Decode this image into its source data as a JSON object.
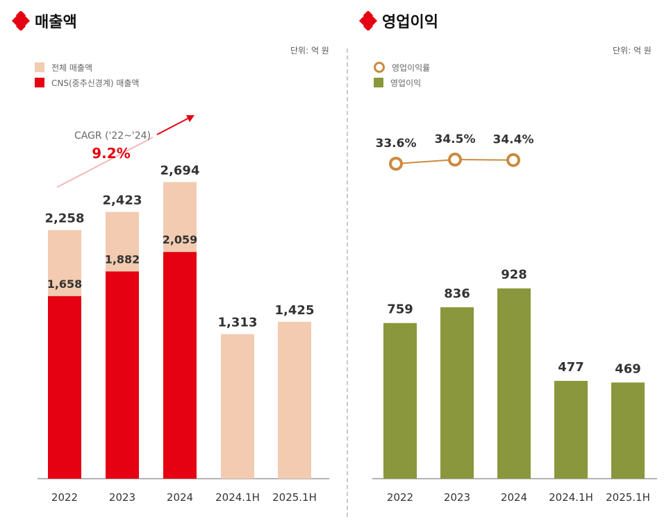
{
  "colors": {
    "total_revenue": "#f2cbb1",
    "cns_revenue": "#e50012",
    "operating_profit": "#8a973c",
    "profit_margin": "#cc8a3d",
    "cagr_accent": "#e50012"
  },
  "left": {
    "title": "매출액",
    "unit": "단위: 억 원",
    "legend": [
      "전체 매출액",
      "CNS(중추신경계) 매출액"
    ],
    "cagr_label": "CAGR ('22~'24)",
    "cagr_value": "9.2%"
  },
  "right": {
    "title": "영업이익",
    "unit": "단위: 억 원",
    "legend": [
      "영업이익률",
      "영업이익"
    ]
  },
  "chart_data": [
    {
      "type": "bar",
      "title": "매출액",
      "unit": "억 원",
      "stacked": "overlay",
      "categories": [
        "2022",
        "2023",
        "2024",
        "2024.1H",
        "2025.1H"
      ],
      "series": [
        {
          "name": "전체 매출액",
          "values": [
            2258,
            2423,
            2694,
            1313,
            1425
          ],
          "labels": [
            "2,258",
            "2,423",
            "2,694",
            "1,313",
            "1,425"
          ]
        },
        {
          "name": "CNS(중추신경계) 매출액",
          "values": [
            1658,
            1882,
            2059,
            null,
            null
          ],
          "labels": [
            "1,658",
            "1,882",
            "2,059",
            null,
            null
          ]
        }
      ],
      "ylim": [
        0,
        3200
      ],
      "annotation": {
        "text": "CAGR ('22~'24)",
        "value": "9.2%"
      }
    },
    {
      "type": "bar",
      "title": "영업이익",
      "unit": "억 원",
      "categories": [
        "2022",
        "2023",
        "2024",
        "2024.1H",
        "2025.1H"
      ],
      "series": [
        {
          "name": "영업이익",
          "values": [
            759,
            836,
            928,
            477,
            469
          ],
          "labels": [
            "759",
            "836",
            "928",
            "477",
            "469"
          ]
        },
        {
          "name": "영업이익률",
          "type": "line",
          "values": [
            33.6,
            34.5,
            34.4,
            null,
            null
          ],
          "labels": [
            "33.6%",
            "34.5%",
            "34.4%",
            null,
            null
          ]
        }
      ],
      "ylim": [
        0,
        1220
      ]
    }
  ]
}
